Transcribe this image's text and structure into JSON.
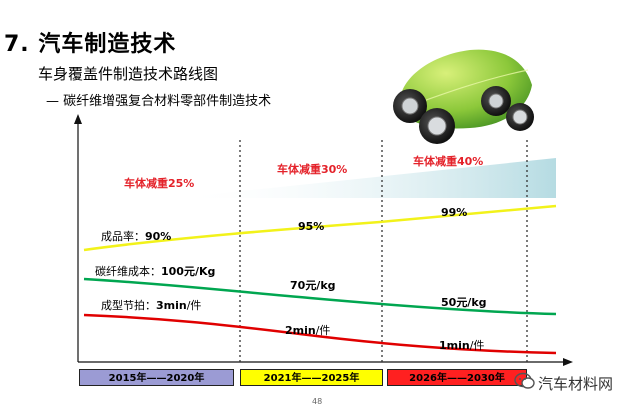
{
  "title": "7. 汽车制造技术",
  "subtitle": "车身覆盖件制造技术路线图",
  "subsubtitle": "— 碳纤维增强复合材料零部件制造技术",
  "weight_reduction": [
    "车体减重25%",
    "车体减重30%",
    "车体减重40%"
  ],
  "phases": [
    {
      "label": "2015年——2020年",
      "color": "#9b9bd4"
    },
    {
      "label": "2021年——2025年",
      "color": "#ffff00"
    },
    {
      "label": "2026年——2030年",
      "color": "#ff2020"
    }
  ],
  "metrics": {
    "yield": {
      "label": "成品率：",
      "start": "90%",
      "mid": "95%",
      "end": "99%",
      "color": "#f2f21a"
    },
    "cost": {
      "label": "碳纤维成本：",
      "start_num": "100",
      "start_unit": "元/Kg",
      "mid_num": "70",
      "mid_unit": "元/kg",
      "end_num": "50",
      "end_unit": "元/kg",
      "color": "#00a650"
    },
    "cycle": {
      "label": "成型节拍：",
      "start_num": "3min",
      "start_unit": "/件",
      "mid_num": "2min",
      "mid_unit": "/件",
      "end_num": "1min",
      "end_unit": "/件",
      "color": "#e00000"
    }
  },
  "colors": {
    "accent_red": "#e4222a",
    "wedge": "#b5dbe2"
  },
  "icons": [
    "car-leaf-image",
    "wechat-icon"
  ],
  "watermark": "汽车材料网",
  "page_number": "48"
}
